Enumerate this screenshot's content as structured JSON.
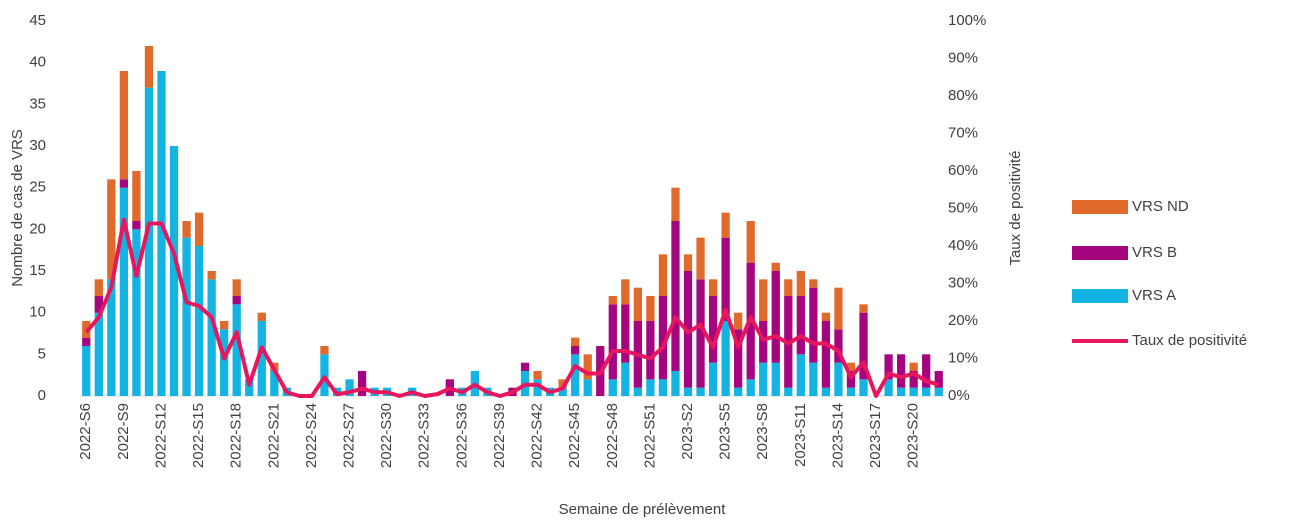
{
  "chart_data": {
    "type": "bar",
    "xlabel": "Semaine de prélèvement",
    "ylabel": "Nombre de cas de VRS",
    "y2label": "Taux de positivité",
    "categories": [
      "2022-S6",
      null,
      null,
      "2022-S9",
      null,
      null,
      "2022-S12",
      null,
      null,
      "2022-S15",
      null,
      null,
      "2022-S18",
      null,
      null,
      "2022-S21",
      null,
      null,
      "2022-S24",
      null,
      null,
      "2022-S27",
      null,
      null,
      "2022-S30",
      null,
      null,
      "2022-S33",
      null,
      null,
      "2022-S36",
      null,
      null,
      "2022-S39",
      null,
      null,
      "2022-S42",
      null,
      null,
      "2022-S45",
      null,
      null,
      "2022-S48",
      null,
      null,
      "2022-S51",
      null,
      null,
      "2023-S2",
      null,
      null,
      "2023-S5",
      null,
      null,
      "2023-S8",
      null,
      null,
      "2023-S11",
      null,
      null,
      "2023-S14",
      null,
      null,
      "2023-S17",
      null,
      null,
      "2023-S20",
      null,
      null
    ],
    "series": [
      {
        "name": "VRS A",
        "color": "#13b3e2",
        "values": [
          6,
          10,
          14,
          25,
          20,
          37,
          39,
          30,
          19,
          18,
          14,
          8,
          11,
          2,
          9,
          3,
          1,
          0,
          0,
          5,
          1,
          2,
          0,
          1,
          1,
          0,
          1,
          0,
          0,
          0,
          1,
          3,
          1,
          0,
          0,
          3,
          2,
          1,
          1,
          5,
          2,
          0,
          2,
          4,
          1,
          2,
          2,
          3,
          1,
          1,
          4,
          9,
          1,
          2,
          4,
          4,
          1,
          5,
          4,
          1,
          4,
          1,
          2,
          0,
          2,
          1,
          1,
          1,
          1
        ]
      },
      {
        "name": "VRS B",
        "color": "#a5057e",
        "values": [
          1,
          2,
          0,
          1,
          1,
          0,
          0,
          0,
          0,
          0,
          0,
          0,
          1,
          0,
          0,
          0,
          0,
          0,
          0,
          0,
          0,
          0,
          3,
          0,
          0,
          0,
          0,
          0,
          0,
          2,
          0,
          0,
          0,
          0,
          1,
          1,
          0,
          0,
          0,
          1,
          0,
          6,
          9,
          7,
          8,
          7,
          10,
          18,
          14,
          13,
          8,
          10,
          7,
          14,
          5,
          11,
          11,
          7,
          9,
          8,
          4,
          2,
          8,
          0,
          3,
          4,
          2,
          4,
          2
        ]
      },
      {
        "name": "VRS ND",
        "color": "#e06a2c",
        "values": [
          2,
          2,
          12,
          13,
          6,
          5,
          0,
          0,
          2,
          4,
          1,
          1,
          2,
          0,
          1,
          1,
          0,
          0,
          0,
          1,
          0,
          0,
          0,
          0,
          0,
          0,
          0,
          0,
          0,
          0,
          0,
          0,
          0,
          0,
          0,
          0,
          1,
          0,
          1,
          1,
          3,
          0,
          1,
          3,
          4,
          3,
          5,
          4,
          2,
          5,
          2,
          3,
          2,
          5,
          5,
          1,
          2,
          3,
          1,
          1,
          5,
          1,
          1,
          0,
          0,
          0,
          1,
          0,
          0
        ]
      },
      {
        "name": "Taux de positivité",
        "color": "#e8175d",
        "axis": "y2",
        "type": "line",
        "values": [
          17,
          21,
          29,
          47,
          32,
          46,
          46,
          38,
          25,
          24,
          21,
          10,
          17,
          3,
          13,
          7,
          1,
          0,
          0,
          5,
          0.5,
          1,
          2,
          1,
          1,
          0,
          1,
          0,
          0.5,
          2,
          1,
          3,
          1,
          0,
          1,
          3,
          3,
          1,
          2,
          8,
          6,
          6,
          12,
          12,
          11,
          10,
          13,
          21,
          17,
          19,
          13,
          23,
          13,
          21,
          15,
          16,
          14,
          16,
          14,
          14,
          12,
          5,
          9,
          0,
          6,
          5,
          6,
          4,
          3
        ]
      }
    ],
    "ylim": [
      0,
      45
    ],
    "yticks": [
      0,
      5,
      10,
      15,
      20,
      25,
      30,
      35,
      40,
      45
    ],
    "y2lim": [
      0,
      100
    ],
    "y2ticks": [
      {
        "value": 0,
        "label": "0%"
      },
      {
        "value": 10,
        "label": "10%"
      },
      {
        "value": 20,
        "label": "20%"
      },
      {
        "value": 30,
        "label": "30%"
      },
      {
        "value": 40,
        "label": "40%"
      },
      {
        "value": 50,
        "label": "50%"
      },
      {
        "value": 60,
        "label": "60%"
      },
      {
        "value": 70,
        "label": "70%"
      },
      {
        "value": 80,
        "label": "80%"
      },
      {
        "value": 90,
        "label": "90%"
      },
      {
        "value": 100,
        "label": "100%"
      }
    ],
    "legend": "right"
  }
}
